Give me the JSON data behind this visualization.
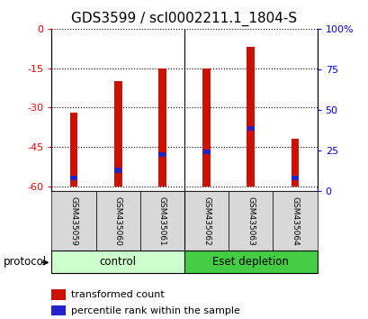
{
  "title": "GDS3599 / scl0002211.1_1804-S",
  "samples": [
    "GSM435059",
    "GSM435060",
    "GSM435061",
    "GSM435062",
    "GSM435063",
    "GSM435064"
  ],
  "group_labels": [
    "control",
    "Eset depletion"
  ],
  "red_bar_bottom": -60,
  "red_bar_tops": [
    -32,
    -20,
    -15,
    -15,
    -7,
    -42
  ],
  "blue_positions": [
    -57,
    -54,
    -48,
    -47,
    -38,
    -57
  ],
  "ylim_left": [
    -62,
    0
  ],
  "ylim_right": [
    0,
    100
  ],
  "left_ticks": [
    0,
    -15,
    -30,
    -45,
    -60
  ],
  "right_ticks": [
    0,
    25,
    50,
    75,
    100
  ],
  "bar_color": "#cc1100",
  "blue_color": "#2222cc",
  "bar_width": 0.18,
  "group1_color": "#ccffcc",
  "group2_color": "#44cc44",
  "sample_bg_color": "#d8d8d8",
  "legend_red_label": "transformed count",
  "legend_blue_label": "percentile rank within the sample",
  "protocol_label": "protocol",
  "title_fontsize": 11,
  "tick_fontsize": 8,
  "label_fontsize": 9
}
